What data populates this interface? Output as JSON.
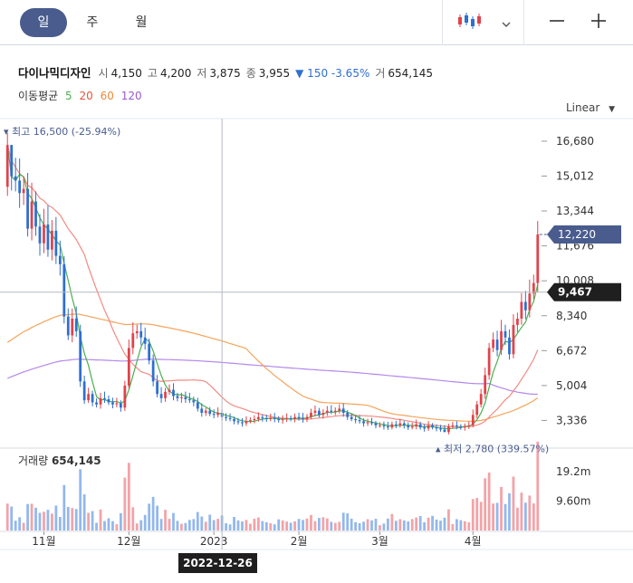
{
  "tabs": [
    {
      "label": "일",
      "active": true
    },
    {
      "label": "주",
      "active": false
    },
    {
      "label": "월",
      "active": false
    }
  ],
  "toolbar": {
    "chart_type_icon": "candlestick-icon",
    "dropdown_icon": "chevron-down-icon",
    "zoom_out_icon": "minus-icon",
    "zoom_in_icon": "plus-icon"
  },
  "stock": {
    "name": "다이나믹디자인",
    "open_label": "시",
    "open": "4,150",
    "high_label": "고",
    "high": "4,200",
    "low_label": "저",
    "low": "3,875",
    "close_label": "종",
    "close": "3,955",
    "change": "▼ 150 -3.65%",
    "volume_label": "거",
    "volume": "654,145"
  },
  "ma_legend": {
    "label": "이동평균",
    "items": [
      {
        "period": "5",
        "color": "#4caf50"
      },
      {
        "period": "20",
        "color": "#e8553c"
      },
      {
        "period": "60",
        "color": "#f08a3a"
      },
      {
        "period": "120",
        "color": "#9b59d0"
      }
    ]
  },
  "scale_mode": "Linear",
  "colors": {
    "up": "#e0434b",
    "down": "#2f6fd0",
    "accent": "#4a5c8e",
    "price_tag_current": "#4a5c8e",
    "price_tag_cursor": "#1f1f1f"
  },
  "chart_data": {
    "type": "candlestick",
    "price_axis_ticks": [
      "16,680",
      "15,012",
      "13,344",
      "11,676",
      "10,008",
      "8,340",
      "6,672",
      "5,004",
      "3,336"
    ],
    "price_ylim": [
      2100,
      17500
    ],
    "volume_axis_ticks": [
      "19.2m",
      "9.60m"
    ],
    "volume_ylim": [
      0,
      26000000
    ],
    "x_axis_labels": [
      {
        "label": "11월",
        "index": 9
      },
      {
        "label": "12월",
        "index": 30
      },
      {
        "label": "2023",
        "index": 51
      },
      {
        "label": "2월",
        "index": 72
      },
      {
        "label": "3월",
        "index": 92
      },
      {
        "label": "4월",
        "index": 115
      }
    ],
    "high_marker": {
      "label": "최고 16,500 (-25.94%)",
      "value": 16500,
      "index": 1
    },
    "low_marker": {
      "label": "최저 2,780 (339.57%)",
      "value": 2780,
      "index": 108
    },
    "current_price": {
      "label": "12,220",
      "value": 12220
    },
    "cursor": {
      "price_label": "9,467",
      "price": 9467,
      "date_label": "2022-12-26",
      "index": 53
    },
    "volume_title": "거래량",
    "volume_last": "654,145",
    "ma_color": {
      "ma5": "#4caf50",
      "ma20": "#f28b82",
      "ma60": "#f5a35a",
      "ma120": "#b388eb"
    },
    "ma60_start": 6900,
    "ma120_start": 5250,
    "closes": [
      16500,
      15000,
      14800,
      14200,
      14400,
      12500,
      13800,
      12600,
      11800,
      12700,
      11500,
      12400,
      11200,
      10800,
      8300,
      7400,
      8200,
      7600,
      5200,
      4300,
      4600,
      4200,
      4100,
      4400,
      4350,
      4200,
      4100,
      4150,
      3950,
      5000,
      6800,
      7500,
      7600,
      7300,
      7000,
      6200,
      5200,
      4600,
      4400,
      4700,
      4800,
      4500,
      4400,
      4450,
      4350,
      4300,
      4200,
      3900,
      3700,
      3800,
      3650,
      3600,
      3700,
      3500,
      3450,
      3400,
      3300,
      3250,
      3200,
      3300,
      3350,
      3400,
      3500,
      3450,
      3400,
      3450,
      3400,
      3350,
      3400,
      3450,
      3400,
      3500,
      3450,
      3400,
      3500,
      3700,
      3800,
      3600,
      3700,
      3800,
      3750,
      3800,
      3900,
      3700,
      3500,
      3400,
      3350,
      3300,
      3200,
      3250,
      3200,
      3100,
      3100,
      3050,
      3000,
      3150,
      3100,
      3200,
      3100,
      3000,
      3050,
      3150,
      3000,
      2950,
      3100,
      3000,
      2950,
      2900,
      2780,
      3050,
      3100,
      3050,
      3000,
      3050,
      3100,
      3600,
      4100,
      4600,
      5500,
      6800,
      7200,
      6700,
      7600,
      7300,
      6500,
      7900,
      8200,
      9000,
      8600,
      9400,
      9900,
      12220
    ]
  }
}
